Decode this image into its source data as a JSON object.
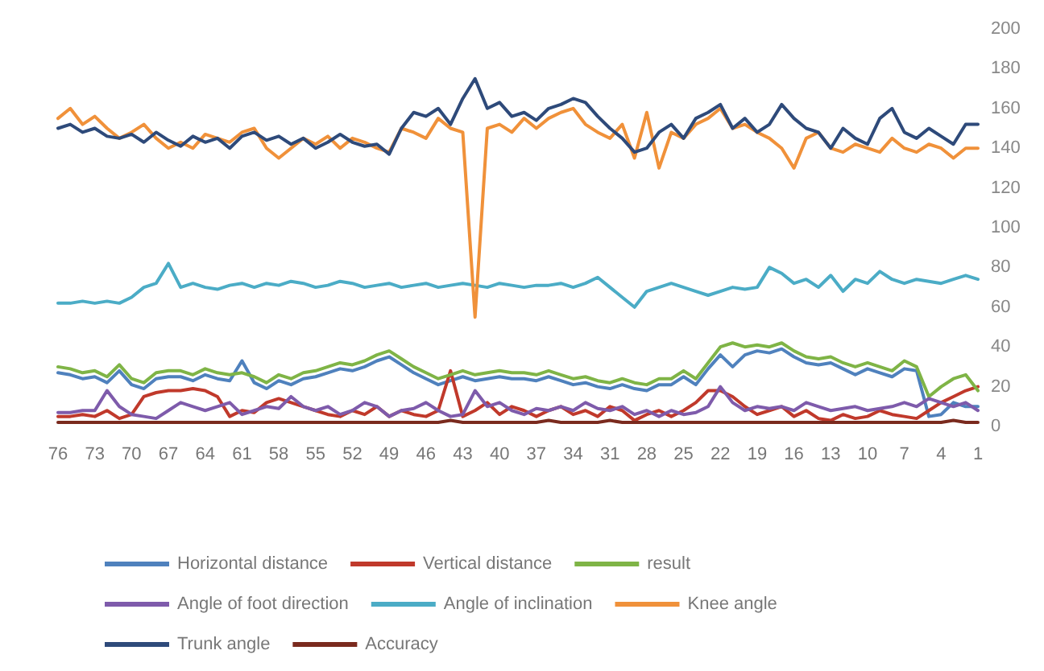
{
  "chart_data": {
    "type": "line",
    "categories": [
      "76",
      null,
      null,
      "73",
      null,
      null,
      "70",
      null,
      null,
      "67",
      null,
      null,
      "64",
      null,
      null,
      "61",
      null,
      null,
      "58",
      null,
      null,
      "55",
      null,
      null,
      "52",
      null,
      null,
      "49",
      null,
      null,
      "46",
      null,
      null,
      "43",
      null,
      null,
      "40",
      null,
      null,
      "37",
      null,
      null,
      "34",
      null,
      null,
      "31",
      null,
      null,
      "28",
      null,
      null,
      "25",
      null,
      null,
      "22",
      null,
      null,
      "19",
      null,
      null,
      "16",
      null,
      null,
      "13",
      null,
      null,
      "10",
      null,
      null,
      "7",
      null,
      null,
      "4",
      null,
      null,
      "1"
    ],
    "series": [
      {
        "name": "Horizontal distance",
        "color": "#4f81bd",
        "values": [
          27,
          26,
          24,
          25,
          22,
          28,
          21,
          19,
          24,
          25,
          25,
          23,
          26,
          24,
          23,
          33,
          22,
          19,
          23,
          21,
          24,
          25,
          27,
          29,
          28,
          30,
          33,
          35,
          31,
          27,
          24,
          21,
          23,
          25,
          23,
          24,
          25,
          24,
          24,
          23,
          25,
          23,
          21,
          22,
          20,
          19,
          21,
          19,
          18,
          21,
          21,
          25,
          21,
          29,
          36,
          30,
          36,
          38,
          37,
          39,
          35,
          32,
          31,
          32,
          29,
          26,
          29,
          27,
          25,
          29,
          28,
          5,
          6,
          12,
          10,
          10
        ]
      },
      {
        "name": "Vertical distance",
        "color": "#c0392b",
        "values": [
          5,
          5,
          6,
          5,
          8,
          4,
          6,
          15,
          17,
          18,
          18,
          19,
          18,
          15,
          5,
          8,
          7,
          12,
          14,
          12,
          10,
          8,
          6,
          5,
          8,
          6,
          10,
          5,
          8,
          6,
          5,
          8,
          28,
          5,
          8,
          12,
          6,
          10,
          8,
          5,
          8,
          10,
          6,
          8,
          5,
          10,
          8,
          3,
          6,
          8,
          5,
          8,
          12,
          18,
          18,
          15,
          10,
          6,
          8,
          10,
          5,
          8,
          4,
          3,
          6,
          4,
          5,
          8,
          6,
          5,
          4,
          8,
          12,
          15,
          18,
          20
        ]
      },
      {
        "name": "result",
        "color": "#7fb446",
        "values": [
          30,
          29,
          27,
          28,
          25,
          31,
          24,
          22,
          27,
          28,
          28,
          26,
          29,
          27,
          26,
          27,
          25,
          22,
          26,
          24,
          27,
          28,
          30,
          32,
          31,
          33,
          36,
          38,
          34,
          30,
          27,
          24,
          26,
          28,
          26,
          27,
          28,
          27,
          27,
          26,
          28,
          26,
          24,
          25,
          23,
          22,
          24,
          22,
          21,
          24,
          24,
          28,
          24,
          32,
          40,
          42,
          40,
          41,
          40,
          42,
          38,
          35,
          34,
          35,
          32,
          30,
          32,
          30,
          28,
          33,
          30,
          15,
          20,
          24,
          26,
          18
        ]
      },
      {
        "name": "Angle of foot direction",
        "color": "#7e5bab",
        "values": [
          7,
          7,
          8,
          8,
          18,
          10,
          6,
          5,
          4,
          8,
          12,
          10,
          8,
          10,
          12,
          6,
          8,
          10,
          9,
          15,
          10,
          8,
          10,
          6,
          8,
          12,
          10,
          5,
          8,
          9,
          12,
          8,
          5,
          6,
          18,
          10,
          12,
          8,
          6,
          9,
          8,
          10,
          8,
          12,
          9,
          8,
          10,
          6,
          8,
          5,
          8,
          6,
          7,
          10,
          20,
          12,
          8,
          10,
          9,
          10,
          8,
          12,
          10,
          8,
          9,
          10,
          8,
          9,
          10,
          12,
          10,
          14,
          12,
          10,
          12,
          8
        ]
      },
      {
        "name": "Angle of inclination",
        "color": "#4bacc6",
        "values": [
          62,
          62,
          63,
          62,
          63,
          62,
          65,
          70,
          72,
          82,
          70,
          72,
          70,
          69,
          71,
          72,
          70,
          72,
          71,
          73,
          72,
          70,
          71,
          73,
          72,
          70,
          71,
          72,
          70,
          71,
          72,
          70,
          71,
          72,
          71,
          70,
          72,
          71,
          70,
          71,
          71,
          72,
          70,
          72,
          75,
          70,
          65,
          60,
          68,
          70,
          72,
          70,
          68,
          66,
          68,
          70,
          69,
          70,
          80,
          77,
          72,
          74,
          70,
          76,
          68,
          74,
          72,
          78,
          74,
          72,
          74,
          73,
          72,
          74,
          76,
          74
        ]
      },
      {
        "name": "Knee angle",
        "color": "#f0913a",
        "values": [
          155,
          160,
          152,
          156,
          150,
          145,
          148,
          152,
          145,
          140,
          143,
          140,
          147,
          145,
          143,
          148,
          150,
          140,
          135,
          140,
          145,
          142,
          146,
          140,
          145,
          143,
          140,
          138,
          150,
          148,
          145,
          155,
          150,
          148,
          55,
          150,
          152,
          148,
          155,
          150,
          155,
          158,
          160,
          152,
          148,
          145,
          152,
          135,
          158,
          130,
          148,
          145,
          152,
          155,
          160,
          150,
          152,
          148,
          145,
          140,
          130,
          145,
          148,
          140,
          138,
          142,
          140,
          138,
          145,
          140,
          138,
          142,
          140,
          135,
          140,
          140
        ]
      },
      {
        "name": "Trunk angle",
        "color": "#2e4a7a",
        "values": [
          150,
          152,
          148,
          150,
          146,
          145,
          147,
          143,
          148,
          144,
          141,
          146,
          143,
          145,
          140,
          146,
          148,
          144,
          146,
          142,
          145,
          140,
          143,
          147,
          143,
          141,
          142,
          137,
          150,
          158,
          156,
          160,
          152,
          165,
          175,
          160,
          163,
          156,
          158,
          154,
          160,
          162,
          165,
          163,
          156,
          150,
          145,
          138,
          140,
          148,
          152,
          145,
          155,
          158,
          162,
          150,
          155,
          148,
          152,
          162,
          155,
          150,
          148,
          140,
          150,
          145,
          142,
          155,
          160,
          148,
          145,
          150,
          146,
          142,
          152,
          152
        ]
      },
      {
        "name": "Accuracy",
        "color": "#7a2a1e",
        "values": [
          2,
          2,
          2,
          2,
          2,
          2,
          2,
          2,
          2,
          2,
          2,
          2,
          2,
          2,
          2,
          2,
          2,
          2,
          2,
          2,
          2,
          2,
          2,
          2,
          2,
          2,
          2,
          2,
          2,
          2,
          2,
          2,
          3,
          2,
          2,
          2,
          2,
          2,
          2,
          2,
          3,
          2,
          2,
          2,
          2,
          3,
          2,
          2,
          2,
          2,
          2,
          2,
          2,
          2,
          2,
          2,
          2,
          2,
          2,
          2,
          2,
          2,
          2,
          2,
          2,
          2,
          2,
          2,
          2,
          2,
          2,
          2,
          2,
          3,
          2,
          2
        ]
      }
    ],
    "ylim": [
      0,
      200
    ],
    "yticks": [
      0,
      20,
      40,
      60,
      80,
      100,
      120,
      140,
      160,
      180,
      200
    ],
    "grid": false,
    "legend": "bottom",
    "marker": "none",
    "line_style": "solid"
  }
}
